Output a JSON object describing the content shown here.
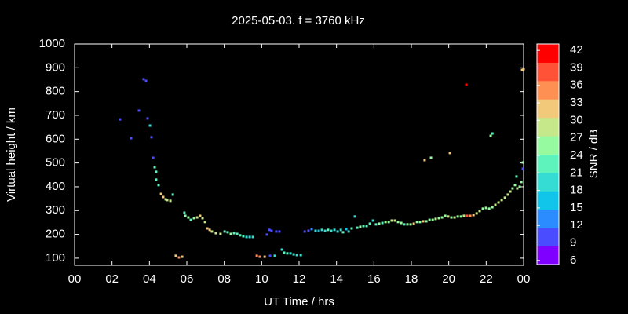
{
  "chart_data": {
    "type": "scatter",
    "title": "2025-05-03. f = 3760 kHz",
    "x_label": "UT Time / hrs",
    "y_label": "Virtual height / km",
    "colorbar_label": "SNR / dB",
    "xlim": [
      0,
      24
    ],
    "ylim": [
      70,
      1000
    ],
    "xticks": [
      {
        "value": 0,
        "label": "00"
      },
      {
        "value": 2,
        "label": "02"
      },
      {
        "value": 4,
        "label": "04"
      },
      {
        "value": 6,
        "label": "06"
      },
      {
        "value": 8,
        "label": "08"
      },
      10,
      12,
      14,
      16,
      18,
      20,
      22,
      {
        "value": 24,
        "label": "00"
      }
    ],
    "yticks": [
      100,
      200,
      300,
      400,
      500,
      600,
      700,
      800,
      900,
      1000
    ],
    "clim": [
      5.3,
      43.1
    ],
    "cticks": [
      6,
      9,
      12,
      15,
      18,
      21,
      24,
      27,
      30,
      33,
      36,
      39,
      42
    ],
    "colormap": [
      "#8000ff",
      "#4a4cff",
      "#2a8cff",
      "#10c4ea",
      "#34dcd4",
      "#5ef2bc",
      "#96faa0",
      "#c6e88a",
      "#f2c87a",
      "#ff9054",
      "#ff5236",
      "#ff0000"
    ],
    "grid": false,
    "x": [
      2.43,
      3.02,
      3.44,
      3.69,
      3.82,
      3.9,
      4.03,
      4.11,
      4.2,
      4.28,
      4.36,
      4.36,
      4.49,
      4.62,
      4.74,
      4.87,
      4.95,
      5.12,
      5.25,
      5.41,
      5.58,
      5.75,
      5.87,
      5.92,
      6.08,
      6.21,
      6.38,
      6.55,
      6.71,
      6.84,
      6.97,
      7.09,
      7.22,
      7.34,
      7.55,
      7.8,
      8.02,
      8.18,
      8.35,
      8.52,
      8.69,
      8.85,
      9.02,
      9.19,
      9.36,
      9.53,
      9.74,
      9.9,
      10.16,
      10.28,
      10.41,
      10.53,
      10.45,
      10.7,
      10.78,
      10.95,
      11.08,
      11.2,
      11.37,
      11.54,
      11.71,
      11.88,
      12.09,
      12.3,
      12.5,
      12.67,
      12.88,
      13.05,
      13.22,
      13.39,
      13.55,
      13.72,
      13.89,
      14.06,
      14.23,
      14.35,
      14.52,
      14.65,
      14.81,
      14.98,
      15.11,
      15.27,
      15.44,
      15.61,
      15.78,
      15.95,
      16.11,
      16.28,
      16.45,
      16.62,
      16.79,
      16.95,
      17.12,
      17.29,
      17.46,
      17.62,
      17.79,
      17.96,
      18.13,
      18.3,
      18.46,
      18.63,
      18.8,
      18.97,
      19.14,
      19.3,
      19.47,
      19.64,
      19.81,
      19.97,
      20.14,
      20.31,
      20.48,
      20.65,
      20.81,
      20.98,
      21.15,
      21.32,
      21.49,
      21.65,
      21.82,
      21.99,
      22.16,
      22.33,
      22.49,
      22.66,
      22.83,
      23.0,
      23.16,
      23.29,
      23.41,
      23.54,
      23.66,
      23.79,
      23.88,
      18.71,
      19.05,
      20.06,
      20.94,
      22.24,
      22.33,
      23.62,
      23.96,
      23.96,
      23.92,
      24.0
    ],
    "values": [
      683,
      604,
      720,
      852,
      845,
      687,
      657,
      608,
      522,
      482,
      463,
      430,
      407,
      370,
      357,
      347,
      344,
      341,
      367,
      110,
      103,
      106,
      291,
      278,
      271,
      261,
      268,
      271,
      278,
      268,
      252,
      225,
      219,
      212,
      205,
      202,
      212,
      209,
      202,
      205,
      202,
      196,
      192,
      189,
      189,
      189,
      110,
      106,
      106,
      199,
      219,
      215,
      110,
      110,
      212,
      212,
      136,
      123,
      120,
      120,
      116,
      113,
      113,
      212,
      215,
      222,
      215,
      215,
      219,
      215,
      219,
      215,
      219,
      212,
      219,
      209,
      222,
      212,
      225,
      275,
      228,
      232,
      235,
      235,
      245,
      258,
      242,
      245,
      248,
      252,
      252,
      258,
      258,
      252,
      248,
      242,
      242,
      242,
      245,
      252,
      252,
      255,
      255,
      261,
      261,
      265,
      268,
      271,
      278,
      275,
      271,
      271,
      275,
      275,
      278,
      278,
      278,
      281,
      288,
      298,
      308,
      311,
      308,
      314,
      324,
      334,
      344,
      354,
      367,
      380,
      393,
      407,
      393,
      400,
      420,
      512,
      522,
      542,
      829,
      614,
      624,
      443,
      476,
      502,
      891,
      894
    ],
    "snr": [
      10,
      10,
      10,
      10,
      11,
      10,
      19,
      10,
      11,
      22,
      22,
      23,
      23,
      31,
      31,
      30,
      29,
      30,
      24,
      33,
      34,
      33,
      24,
      26,
      27,
      23,
      27,
      28,
      31,
      30,
      29,
      32,
      31,
      30,
      29,
      30,
      24,
      23,
      27,
      24,
      23,
      24,
      22,
      19,
      20,
      20,
      34,
      34,
      33,
      11,
      10,
      11,
      10,
      19,
      10,
      11,
      20,
      23,
      22,
      21,
      20,
      19,
      20,
      11,
      10,
      12,
      18,
      17,
      20,
      21,
      22,
      19,
      21,
      18,
      20,
      22,
      17,
      20,
      22,
      20,
      24,
      25,
      24,
      23,
      24,
      21,
      24,
      25,
      24,
      25,
      26,
      28,
      29,
      26,
      25,
      24,
      26,
      25,
      32,
      27,
      26,
      33,
      25,
      27,
      26,
      28,
      27,
      25,
      26,
      29,
      27,
      28,
      27,
      26,
      28,
      37,
      36,
      33,
      30,
      29,
      26,
      27,
      26,
      27,
      28,
      29,
      30,
      28,
      29,
      28,
      27,
      26,
      28,
      26,
      25,
      33,
      25,
      31,
      41,
      25,
      24,
      24,
      10,
      25,
      31,
      32
    ]
  }
}
